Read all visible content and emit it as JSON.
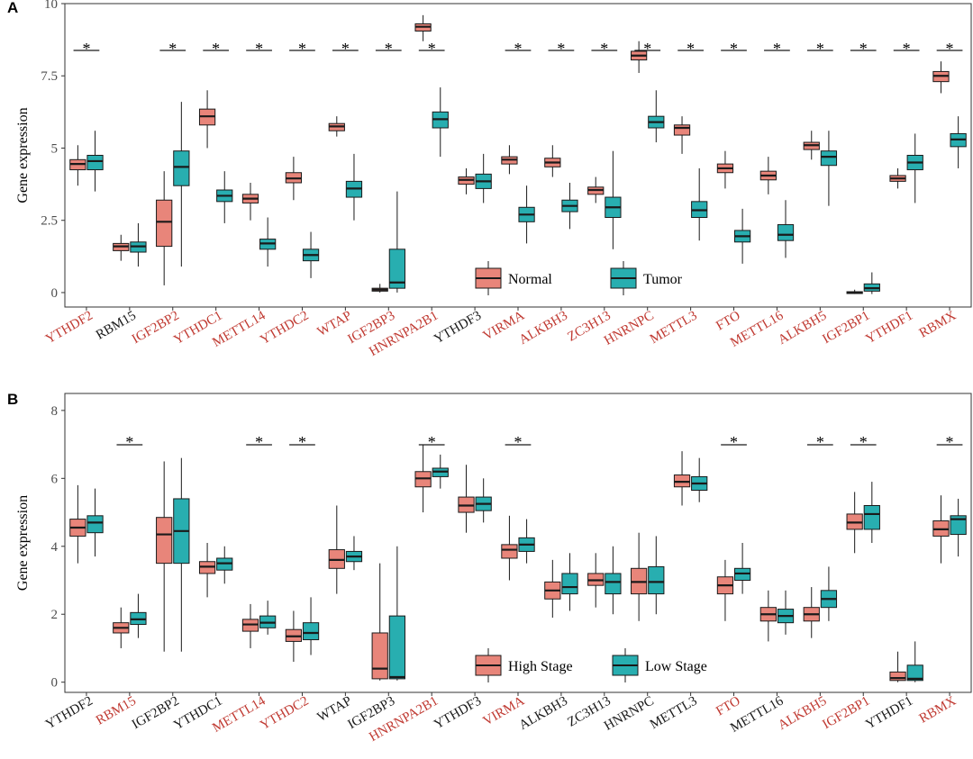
{
  "chart_data": [
    {
      "panel": "A",
      "type": "box",
      "ylabel": "Gene expression",
      "ylim": [
        -0.5,
        10
      ],
      "yticks": [
        "0",
        "2.5",
        "5",
        "7.5",
        "10"
      ],
      "ytick_values": [
        0,
        2.5,
        5,
        7.5,
        10
      ],
      "groups": [
        "Normal",
        "Tumor"
      ],
      "group_colors": [
        "#e8857a",
        "#28aeb0"
      ],
      "categories": [
        "YTHDF2",
        "RBM15",
        "IGF2BP2",
        "YTHDC1",
        "METTL14",
        "YTHDC2",
        "WTAP",
        "IGF2BP3",
        "HNRNPA2B1",
        "YTHDF3",
        "VIRMA",
        "ALKBH3",
        "ZC3H13",
        "HNRNPC",
        "METTL3",
        "FTO",
        "METTL16",
        "ALKBH5",
        "IGF2BP1",
        "YTHDF1",
        "RBMX"
      ],
      "label_colors": [
        "#c03a32",
        "#1a1a1a",
        "#c03a32",
        "#c03a32",
        "#c03a32",
        "#c03a32",
        "#c03a32",
        "#c03a32",
        "#c03a32",
        "#1a1a1a",
        "#c03a32",
        "#c03a32",
        "#c03a32",
        "#c03a32",
        "#c03a32",
        "#c03a32",
        "#c03a32",
        "#c03a32",
        "#c03a32",
        "#c03a32",
        "#c03a32"
      ],
      "significant": [
        true,
        false,
        true,
        true,
        true,
        true,
        true,
        true,
        true,
        false,
        true,
        true,
        true,
        true,
        true,
        true,
        true,
        true,
        true,
        true,
        true
      ],
      "star_label": "*",
      "legend": {
        "position": "bottom-center",
        "entries": [
          "Normal",
          "Tumor"
        ]
      },
      "series": [
        {
          "name": "Normal",
          "boxes": [
            [
              3.7,
              4.25,
              4.45,
              4.6,
              5.1
            ],
            [
              1.1,
              1.45,
              1.6,
              1.7,
              2.0
            ],
            [
              0.25,
              1.6,
              2.45,
              3.2,
              4.2
            ],
            [
              5.0,
              5.8,
              6.1,
              6.35,
              7.0
            ],
            [
              2.5,
              3.1,
              3.25,
              3.4,
              3.8
            ],
            [
              3.2,
              3.8,
              3.95,
              4.15,
              4.7
            ],
            [
              5.4,
              5.6,
              5.75,
              5.85,
              6.1
            ],
            [
              0.0,
              0.05,
              0.1,
              0.15,
              0.3
            ],
            [
              8.7,
              9.05,
              9.2,
              9.3,
              9.6
            ],
            [
              3.4,
              3.75,
              3.9,
              4.0,
              4.3
            ],
            [
              4.1,
              4.45,
              4.6,
              4.7,
              5.1
            ],
            [
              4.0,
              4.35,
              4.5,
              4.65,
              5.1
            ],
            [
              3.1,
              3.4,
              3.55,
              3.65,
              4.0
            ],
            [
              7.6,
              8.05,
              8.2,
              8.35,
              8.7
            ],
            [
              4.8,
              5.45,
              5.7,
              5.8,
              6.1
            ],
            [
              3.6,
              4.15,
              4.3,
              4.45,
              4.9
            ],
            [
              3.4,
              3.9,
              4.05,
              4.2,
              4.7
            ],
            [
              4.6,
              4.95,
              5.1,
              5.2,
              5.6
            ],
            [
              -0.05,
              -0.02,
              0.0,
              0.03,
              0.1
            ],
            [
              3.6,
              3.85,
              3.95,
              4.05,
              4.3
            ],
            [
              6.9,
              7.3,
              7.5,
              7.65,
              8.0
            ]
          ]
        },
        {
          "name": "Tumor",
          "boxes": [
            [
              3.5,
              4.25,
              4.55,
              4.75,
              5.6
            ],
            [
              0.9,
              1.4,
              1.6,
              1.75,
              2.4
            ],
            [
              0.9,
              3.7,
              4.35,
              4.9,
              6.6
            ],
            [
              2.4,
              3.15,
              3.35,
              3.55,
              4.2
            ],
            [
              0.9,
              1.5,
              1.7,
              1.85,
              2.6
            ],
            [
              0.5,
              1.1,
              1.3,
              1.5,
              2.1
            ],
            [
              2.5,
              3.3,
              3.6,
              3.85,
              4.8
            ],
            [
              0.0,
              0.15,
              0.35,
              1.5,
              3.5
            ],
            [
              4.7,
              5.7,
              6.0,
              6.25,
              7.1
            ],
            [
              3.1,
              3.6,
              3.85,
              4.1,
              4.8
            ],
            [
              1.7,
              2.45,
              2.7,
              2.95,
              3.7
            ],
            [
              2.2,
              2.8,
              3.0,
              3.2,
              3.8
            ],
            [
              1.5,
              2.6,
              2.95,
              3.3,
              4.9
            ],
            [
              5.2,
              5.7,
              5.9,
              6.1,
              7.0
            ],
            [
              1.8,
              2.6,
              2.85,
              3.15,
              4.3
            ],
            [
              1.0,
              1.75,
              1.95,
              2.15,
              2.9
            ],
            [
              1.2,
              1.8,
              2.0,
              2.35,
              3.2
            ],
            [
              3.0,
              4.4,
              4.7,
              4.9,
              5.6
            ],
            [
              -0.05,
              0.05,
              0.15,
              0.3,
              0.7
            ],
            [
              3.1,
              4.25,
              4.5,
              4.75,
              5.5
            ],
            [
              4.3,
              5.05,
              5.3,
              5.5,
              6.1
            ]
          ]
        }
      ]
    },
    {
      "panel": "B",
      "type": "box",
      "ylabel": "Gene expression",
      "ylim": [
        -0.3,
        8.5
      ],
      "yticks": [
        "0",
        "2",
        "4",
        "6",
        "8"
      ],
      "ytick_values": [
        0,
        2,
        4,
        6,
        8
      ],
      "groups": [
        "High Stage",
        "Low Stage"
      ],
      "group_colors": [
        "#e8857a",
        "#28aeb0"
      ],
      "categories": [
        "YTHDF2",
        "RBM15",
        "IGF2BP2",
        "YTHDC1",
        "METTL14",
        "YTHDC2",
        "WTAP",
        "IGF2BP3",
        "HNRNPA2B1",
        "YTHDF3",
        "VIRMA",
        "ALKBH3",
        "ZC3H13",
        "HNRNPC",
        "METTL3",
        "FTO",
        "METTL16",
        "ALKBH5",
        "IGF2BP1",
        "YTHDF1",
        "RBMX"
      ],
      "label_colors": [
        "#1a1a1a",
        "#c03a32",
        "#1a1a1a",
        "#1a1a1a",
        "#c03a32",
        "#c03a32",
        "#1a1a1a",
        "#1a1a1a",
        "#c03a32",
        "#1a1a1a",
        "#c03a32",
        "#1a1a1a",
        "#1a1a1a",
        "#1a1a1a",
        "#1a1a1a",
        "#c03a32",
        "#1a1a1a",
        "#c03a32",
        "#c03a32",
        "#1a1a1a",
        "#c03a32"
      ],
      "significant": [
        false,
        true,
        false,
        false,
        true,
        true,
        false,
        false,
        true,
        false,
        true,
        false,
        false,
        false,
        false,
        true,
        false,
        true,
        true,
        false,
        true
      ],
      "star_label": "*",
      "legend": {
        "position": "bottom-center",
        "entries": [
          "High Stage",
          "Low Stage"
        ]
      },
      "series": [
        {
          "name": "High Stage",
          "boxes": [
            [
              3.5,
              4.3,
              4.55,
              4.8,
              5.8
            ],
            [
              1.0,
              1.45,
              1.6,
              1.75,
              2.2
            ],
            [
              0.9,
              3.5,
              4.35,
              4.85,
              6.5
            ],
            [
              2.5,
              3.2,
              3.4,
              3.55,
              4.1
            ],
            [
              1.0,
              1.5,
              1.7,
              1.85,
              2.3
            ],
            [
              0.6,
              1.2,
              1.35,
              1.55,
              2.1
            ],
            [
              2.6,
              3.35,
              3.6,
              3.9,
              5.2
            ],
            [
              0.05,
              0.1,
              0.4,
              1.45,
              3.5
            ],
            [
              5.0,
              5.75,
              6.0,
              6.2,
              7.0
            ],
            [
              4.4,
              5.0,
              5.2,
              5.45,
              6.4
            ],
            [
              3.0,
              3.65,
              3.9,
              4.05,
              4.9
            ],
            [
              1.9,
              2.45,
              2.7,
              2.95,
              3.6
            ],
            [
              2.2,
              2.85,
              3.0,
              3.2,
              3.8
            ],
            [
              1.8,
              2.6,
              2.95,
              3.35,
              4.4
            ],
            [
              5.2,
              5.75,
              5.9,
              6.1,
              6.8
            ],
            [
              1.8,
              2.6,
              2.85,
              3.1,
              3.6
            ],
            [
              1.2,
              1.8,
              2.0,
              2.2,
              2.7
            ],
            [
              1.3,
              1.8,
              2.0,
              2.2,
              2.8
            ],
            [
              3.8,
              4.5,
              4.7,
              4.95,
              5.6
            ],
            [
              0.0,
              0.05,
              0.12,
              0.3,
              0.9
            ],
            [
              3.5,
              4.3,
              4.5,
              4.75,
              5.5
            ]
          ]
        },
        {
          "name": "Low Stage",
          "boxes": [
            [
              3.7,
              4.4,
              4.7,
              4.9,
              5.7
            ],
            [
              1.3,
              1.7,
              1.85,
              2.05,
              2.6
            ],
            [
              0.9,
              3.5,
              4.45,
              5.4,
              6.6
            ],
            [
              2.9,
              3.3,
              3.5,
              3.65,
              4.0
            ],
            [
              1.4,
              1.6,
              1.75,
              1.95,
              2.4
            ],
            [
              0.8,
              1.25,
              1.45,
              1.75,
              2.5
            ],
            [
              3.3,
              3.55,
              3.7,
              3.85,
              4.3
            ],
            [
              0.05,
              0.1,
              0.15,
              1.95,
              4.0
            ],
            [
              5.7,
              6.05,
              6.2,
              6.3,
              6.7
            ],
            [
              4.7,
              5.05,
              5.25,
              5.45,
              6.0
            ],
            [
              3.5,
              3.85,
              4.05,
              4.25,
              4.8
            ],
            [
              2.1,
              2.6,
              2.8,
              3.2,
              3.8
            ],
            [
              2.0,
              2.6,
              2.95,
              3.2,
              4.0
            ],
            [
              2.0,
              2.6,
              2.95,
              3.4,
              4.3
            ],
            [
              5.3,
              5.65,
              5.85,
              6.05,
              6.6
            ],
            [
              2.6,
              3.0,
              3.2,
              3.35,
              4.1
            ],
            [
              1.4,
              1.75,
              1.95,
              2.15,
              2.7
            ],
            [
              1.8,
              2.2,
              2.45,
              2.7,
              3.4
            ],
            [
              4.1,
              4.5,
              4.95,
              5.2,
              5.9
            ],
            [
              0.0,
              0.05,
              0.1,
              0.5,
              1.2
            ],
            [
              3.7,
              4.35,
              4.8,
              4.9,
              5.4
            ]
          ]
        }
      ]
    }
  ]
}
